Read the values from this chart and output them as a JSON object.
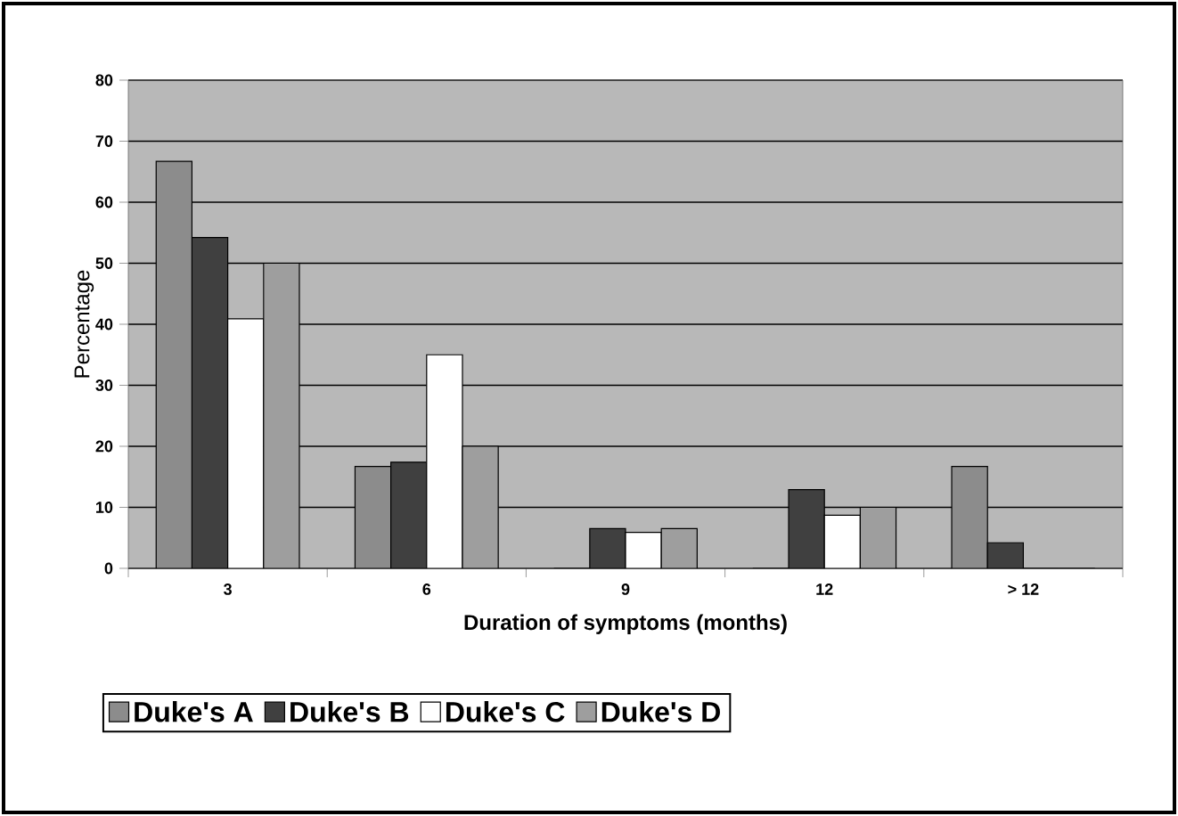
{
  "chart_data": {
    "type": "bar",
    "xlabel": "Duration of symptoms (months)",
    "ylabel": "Percentage",
    "categories": [
      "3",
      "6",
      "9",
      "12",
      "> 12"
    ],
    "series": [
      {
        "name": "Duke's A",
        "color": "#8c8c8c",
        "values": [
          66.7,
          16.7,
          0,
          0,
          16.7
        ]
      },
      {
        "name": "Duke's B",
        "color": "#404040",
        "values": [
          54.2,
          17.4,
          6.5,
          12.9,
          4.2
        ]
      },
      {
        "name": "Duke's C",
        "color": "#ffffff",
        "values": [
          40.9,
          35,
          5.9,
          8.7,
          0
        ]
      },
      {
        "name": "Duke's D",
        "color": "#9e9e9e",
        "values": [
          50,
          20,
          6.5,
          10,
          0
        ]
      }
    ],
    "ylim": [
      0,
      80
    ],
    "yticks": [
      0,
      10,
      20,
      30,
      40,
      50,
      60,
      70,
      80
    ],
    "grid": "y",
    "legend": "bottom"
  }
}
